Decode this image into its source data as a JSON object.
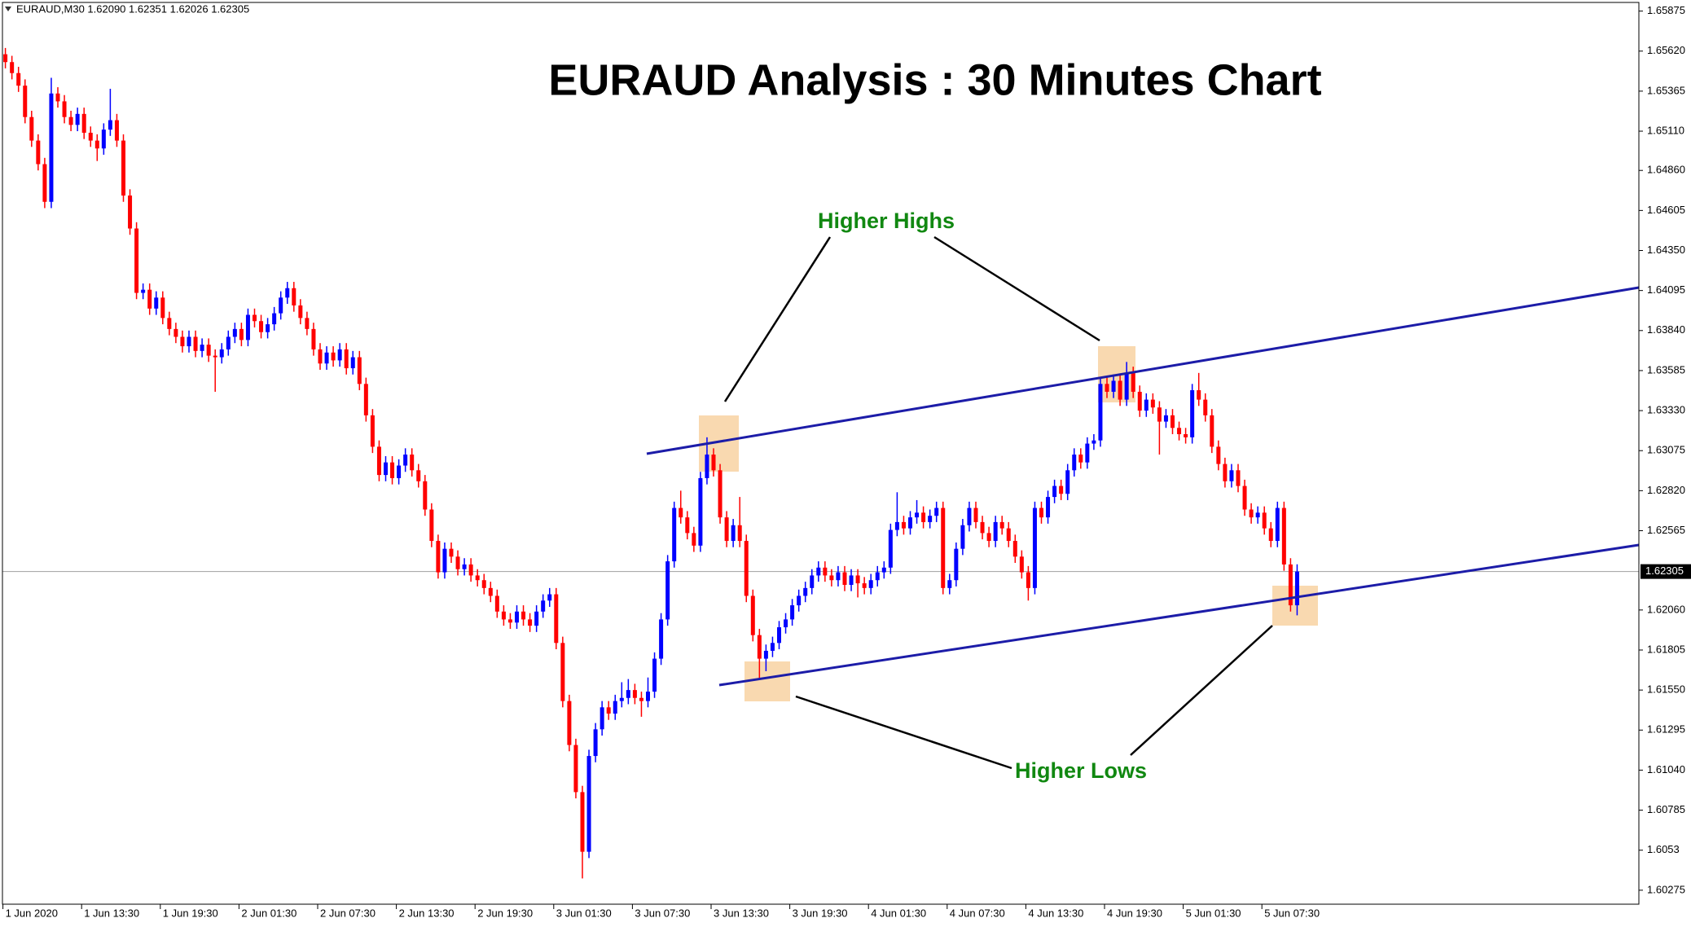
{
  "chart_data": {
    "type": "candlestick",
    "title": "EURAUD Analysis : 30 Minutes Chart",
    "info": "EURAUD,M30  1.62090 1.62351 1.62026 1.62305",
    "annotations": [
      "Higher Highs",
      "Higher Lows"
    ],
    "up_color": "#0000ff",
    "down_color": "#ff0000",
    "ylim": [
      1.60186,
      1.6593
    ],
    "yticks": [
      1.65875,
      {
        "value": 1.6562,
        "label": "1.65620"
      },
      1.65365,
      {
        "value": 1.6511,
        "label": "1.65110"
      },
      {
        "value": 1.6486,
        "label": "1.64860"
      },
      1.64605,
      {
        "value": 1.6435,
        "label": "1.64350"
      },
      1.64095,
      {
        "value": 1.6384,
        "label": "1.63840"
      },
      1.63585,
      {
        "value": 1.6333,
        "label": "1.63330"
      },
      1.63075,
      {
        "value": 1.6282,
        "label": "1.62820"
      },
      1.62565,
      {
        "value": 1.6206,
        "label": "1.62060"
      },
      1.61805,
      {
        "value": 1.6155,
        "label": "1.61550"
      },
      1.61295,
      {
        "value": 1.6104,
        "label": "1.61040"
      },
      1.60785,
      1.6053,
      1.60275
    ],
    "current_price": 1.62305,
    "categories": [
      "1 Jun 2020",
      null,
      null,
      null,
      null,
      null,
      null,
      null,
      null,
      null,
      null,
      null,
      "1 Jun 13:30",
      null,
      null,
      null,
      null,
      null,
      null,
      null,
      null,
      null,
      null,
      null,
      "1 Jun 19:30",
      null,
      null,
      null,
      null,
      null,
      null,
      null,
      null,
      null,
      null,
      null,
      "2 Jun 01:30",
      null,
      null,
      null,
      null,
      null,
      null,
      null,
      null,
      null,
      null,
      null,
      "2 Jun 07:30",
      null,
      null,
      null,
      null,
      null,
      null,
      null,
      null,
      null,
      null,
      null,
      "2 Jun 13:30",
      null,
      null,
      null,
      null,
      null,
      null,
      null,
      null,
      null,
      null,
      null,
      "2 Jun 19:30",
      null,
      null,
      null,
      null,
      null,
      null,
      null,
      null,
      null,
      null,
      null,
      "3 Jun 01:30",
      null,
      null,
      null,
      null,
      null,
      null,
      null,
      null,
      null,
      null,
      null,
      "3 Jun 07:30",
      null,
      null,
      null,
      null,
      null,
      null,
      null,
      null,
      null,
      null,
      null,
      "3 Jun 13:30",
      null,
      null,
      null,
      null,
      null,
      null,
      null,
      null,
      null,
      null,
      null,
      "3 Jun 19:30",
      null,
      null,
      null,
      null,
      null,
      null,
      null,
      null,
      null,
      null,
      null,
      "4 Jun 01:30",
      null,
      null,
      null,
      null,
      null,
      null,
      null,
      null,
      null,
      null,
      null,
      "4 Jun 07:30",
      null,
      null,
      null,
      null,
      null,
      null,
      null,
      null,
      null,
      null,
      null,
      "4 Jun 13:30",
      null,
      null,
      null,
      null,
      null,
      null,
      null,
      null,
      null,
      null,
      null,
      "4 Jun 19:30",
      null,
      null,
      null,
      null,
      null,
      null,
      null,
      null,
      null,
      null,
      null,
      "5 Jun 01:30",
      null,
      null,
      null,
      null,
      null,
      null,
      null,
      null,
      null,
      null,
      null,
      "5 Jun 07:30",
      null,
      null,
      null,
      null,
      null
    ],
    "ohlc": [
      [
        1.656,
        1.6564,
        1.6551,
        1.6555
      ],
      [
        1.6555,
        1.6559,
        1.6544,
        1.6548
      ],
      [
        1.6548,
        1.6552,
        1.6536,
        1.654
      ],
      [
        1.654,
        1.6544,
        1.6516,
        1.652
      ],
      [
        1.652,
        1.6524,
        1.6501,
        1.6505
      ],
      [
        1.6505,
        1.6509,
        1.6486,
        1.649
      ],
      [
        1.649,
        1.6494,
        1.6462,
        1.6466
      ],
      [
        1.6466,
        1.6545,
        1.6462,
        1.6535
      ],
      [
        1.6535,
        1.6539,
        1.6526,
        1.653
      ],
      [
        1.653,
        1.6534,
        1.6516,
        1.652
      ],
      [
        1.652,
        1.6524,
        1.6511,
        1.6515
      ],
      [
        1.6515,
        1.6526,
        1.6511,
        1.6522
      ],
      [
        1.6522,
        1.6526,
        1.6506,
        1.651
      ],
      [
        1.651,
        1.6514,
        1.6501,
        1.6505
      ],
      [
        1.6505,
        1.6509,
        1.6492,
        1.65
      ],
      [
        1.65,
        1.6516,
        1.6496,
        1.6512
      ],
      [
        1.6512,
        1.6538,
        1.6508,
        1.6518
      ],
      [
        1.6518,
        1.6522,
        1.6501,
        1.6505
      ],
      [
        1.6505,
        1.6509,
        1.6466,
        1.647
      ],
      [
        1.647,
        1.6474,
        1.6445,
        1.6449
      ],
      [
        1.6449,
        1.6453,
        1.6404,
        1.6408
      ],
      [
        1.6408,
        1.6414,
        1.6404,
        1.641
      ],
      [
        1.641,
        1.6414,
        1.6394,
        1.6398
      ],
      [
        1.6398,
        1.6409,
        1.6394,
        1.6405
      ],
      [
        1.6405,
        1.6409,
        1.6388,
        1.6392
      ],
      [
        1.6392,
        1.6396,
        1.6381,
        1.6385
      ],
      [
        1.6385,
        1.6389,
        1.6376,
        1.638
      ],
      [
        1.638,
        1.6384,
        1.637,
        1.6374
      ],
      [
        1.6374,
        1.6384,
        1.637,
        1.638
      ],
      [
        1.638,
        1.6384,
        1.6367,
        1.6371
      ],
      [
        1.6371,
        1.6379,
        1.6367,
        1.6375
      ],
      [
        1.6375,
        1.6379,
        1.6364,
        1.6368
      ],
      [
        1.6368,
        1.6372,
        1.6345,
        1.6367
      ],
      [
        1.6367,
        1.6376,
        1.6363,
        1.6372
      ],
      [
        1.6372,
        1.6384,
        1.6368,
        1.638
      ],
      [
        1.638,
        1.6389,
        1.6376,
        1.6385
      ],
      [
        1.6385,
        1.6389,
        1.6374,
        1.6378
      ],
      [
        1.6378,
        1.6398,
        1.6374,
        1.6394
      ],
      [
        1.6394,
        1.6398,
        1.6386,
        1.639
      ],
      [
        1.639,
        1.6394,
        1.6379,
        1.6383
      ],
      [
        1.6383,
        1.6392,
        1.6379,
        1.6388
      ],
      [
        1.6388,
        1.6399,
        1.6384,
        1.6395
      ],
      [
        1.6395,
        1.6409,
        1.6391,
        1.6405
      ],
      [
        1.6405,
        1.6415,
        1.6401,
        1.6411
      ],
      [
        1.6411,
        1.6415,
        1.6396,
        1.64
      ],
      [
        1.64,
        1.6404,
        1.6388,
        1.6392
      ],
      [
        1.6392,
        1.6396,
        1.6381,
        1.6385
      ],
      [
        1.6385,
        1.6389,
        1.6368,
        1.6372
      ],
      [
        1.6372,
        1.6376,
        1.6359,
        1.6363
      ],
      [
        1.6363,
        1.6374,
        1.6359,
        1.637
      ],
      [
        1.637,
        1.6374,
        1.6361,
        1.6365
      ],
      [
        1.6365,
        1.6376,
        1.6361,
        1.6372
      ],
      [
        1.6372,
        1.6376,
        1.6356,
        1.636
      ],
      [
        1.636,
        1.6371,
        1.6356,
        1.6367
      ],
      [
        1.6367,
        1.6371,
        1.6346,
        1.635
      ],
      [
        1.635,
        1.6354,
        1.6326,
        1.633
      ],
      [
        1.633,
        1.6334,
        1.6306,
        1.631
      ],
      [
        1.631,
        1.6314,
        1.6288,
        1.6292
      ],
      [
        1.6292,
        1.6304,
        1.6288,
        1.63
      ],
      [
        1.63,
        1.6304,
        1.6286,
        1.629
      ],
      [
        1.629,
        1.6302,
        1.6286,
        1.6298
      ],
      [
        1.6298,
        1.6309,
        1.6294,
        1.6305
      ],
      [
        1.6305,
        1.6309,
        1.6291,
        1.6295
      ],
      [
        1.6295,
        1.6299,
        1.6284,
        1.6288
      ],
      [
        1.6288,
        1.6292,
        1.6266,
        1.627
      ],
      [
        1.627,
        1.6274,
        1.6246,
        1.625
      ],
      [
        1.625,
        1.6254,
        1.6226,
        1.623
      ],
      [
        1.623,
        1.6249,
        1.6226,
        1.6245
      ],
      [
        1.6245,
        1.6249,
        1.6236,
        1.624
      ],
      [
        1.624,
        1.6244,
        1.6228,
        1.6232
      ],
      [
        1.6232,
        1.6239,
        1.6228,
        1.6235
      ],
      [
        1.6235,
        1.6239,
        1.6224,
        1.6228
      ],
      [
        1.6228,
        1.6232,
        1.6221,
        1.6225
      ],
      [
        1.6225,
        1.6229,
        1.6216,
        1.622
      ],
      [
        1.622,
        1.6224,
        1.6211,
        1.6215
      ],
      [
        1.6215,
        1.6219,
        1.6201,
        1.6205
      ],
      [
        1.6205,
        1.6209,
        1.6196,
        1.62
      ],
      [
        1.62,
        1.6204,
        1.6194,
        1.6198
      ],
      [
        1.6198,
        1.6209,
        1.6194,
        1.6205
      ],
      [
        1.6205,
        1.6209,
        1.6196,
        1.62
      ],
      [
        1.62,
        1.6204,
        1.6192,
        1.6196
      ],
      [
        1.6196,
        1.6209,
        1.6192,
        1.6205
      ],
      [
        1.6205,
        1.6216,
        1.6201,
        1.6212
      ],
      [
        1.6212,
        1.622,
        1.6208,
        1.6216
      ],
      [
        1.6216,
        1.622,
        1.6181,
        1.6185
      ],
      [
        1.6185,
        1.6189,
        1.6144,
        1.6148
      ],
      [
        1.6148,
        1.6152,
        1.6116,
        1.612
      ],
      [
        1.612,
        1.6124,
        1.6086,
        1.609
      ],
      [
        1.609,
        1.6094,
        1.6035,
        1.6052
      ],
      [
        1.6052,
        1.6117,
        1.6048,
        1.6113
      ],
      [
        1.6113,
        1.6134,
        1.6109,
        1.613
      ],
      [
        1.613,
        1.6148,
        1.6126,
        1.6144
      ],
      [
        1.6144,
        1.6148,
        1.6136,
        1.614
      ],
      [
        1.614,
        1.6152,
        1.6136,
        1.6148
      ],
      [
        1.6148,
        1.616,
        1.6144,
        1.615
      ],
      [
        1.615,
        1.6162,
        1.6146,
        1.6155
      ],
      [
        1.6155,
        1.6159,
        1.6146,
        1.615
      ],
      [
        1.615,
        1.6154,
        1.6138,
        1.6148
      ],
      [
        1.6148,
        1.6163,
        1.6144,
        1.6154
      ],
      [
        1.6154,
        1.6179,
        1.615,
        1.6175
      ],
      [
        1.6175,
        1.6204,
        1.6171,
        1.62
      ],
      [
        1.62,
        1.6241,
        1.6196,
        1.6237
      ],
      [
        1.6237,
        1.6275,
        1.6233,
        1.6271
      ],
      [
        1.6271,
        1.6282,
        1.6261,
        1.6265
      ],
      [
        1.6265,
        1.6269,
        1.6251,
        1.6255
      ],
      [
        1.6255,
        1.6259,
        1.6243,
        1.6247
      ],
      [
        1.6247,
        1.6294,
        1.6243,
        1.629
      ],
      [
        1.629,
        1.6316,
        1.6286,
        1.6305
      ],
      [
        1.6305,
        1.6309,
        1.6291,
        1.6295
      ],
      [
        1.6295,
        1.6299,
        1.6261,
        1.6265
      ],
      [
        1.6265,
        1.6269,
        1.6246,
        1.625
      ],
      [
        1.625,
        1.6264,
        1.6246,
        1.626
      ],
      [
        1.626,
        1.6278,
        1.6246,
        1.625
      ],
      [
        1.625,
        1.6254,
        1.6211,
        1.6215
      ],
      [
        1.6215,
        1.6219,
        1.6186,
        1.619
      ],
      [
        1.619,
        1.6194,
        1.6162,
        1.6175
      ],
      [
        1.6175,
        1.6184,
        1.6167,
        1.618
      ],
      [
        1.618,
        1.6189,
        1.6176,
        1.6185
      ],
      [
        1.6185,
        1.6199,
        1.6181,
        1.6195
      ],
      [
        1.6195,
        1.6204,
        1.6191,
        1.62
      ],
      [
        1.62,
        1.6213,
        1.6196,
        1.6209
      ],
      [
        1.6209,
        1.6219,
        1.6205,
        1.6215
      ],
      [
        1.6215,
        1.6224,
        1.6211,
        1.622
      ],
      [
        1.622,
        1.6232,
        1.6216,
        1.6228
      ],
      [
        1.6228,
        1.6237,
        1.6224,
        1.6233
      ],
      [
        1.6233,
        1.6237,
        1.6224,
        1.6228
      ],
      [
        1.6228,
        1.6232,
        1.6221,
        1.6225
      ],
      [
        1.6225,
        1.6234,
        1.6221,
        1.623
      ],
      [
        1.623,
        1.6234,
        1.6218,
        1.6222
      ],
      [
        1.6222,
        1.6232,
        1.6218,
        1.6228
      ],
      [
        1.6228,
        1.6232,
        1.6214,
        1.6223
      ],
      [
        1.6223,
        1.6227,
        1.6216,
        1.622
      ],
      [
        1.622,
        1.6229,
        1.6216,
        1.6225
      ],
      [
        1.6225,
        1.6234,
        1.6221,
        1.623
      ],
      [
        1.623,
        1.6237,
        1.6226,
        1.6233
      ],
      [
        1.6233,
        1.6261,
        1.6229,
        1.6257
      ],
      [
        1.6257,
        1.6281,
        1.6253,
        1.6262
      ],
      [
        1.6262,
        1.6266,
        1.6254,
        1.6258
      ],
      [
        1.6258,
        1.6269,
        1.6254,
        1.6265
      ],
      [
        1.6265,
        1.6276,
        1.6261,
        1.6268
      ],
      [
        1.6268,
        1.6272,
        1.6258,
        1.6262
      ],
      [
        1.6262,
        1.627,
        1.6258,
        1.6266
      ],
      [
        1.6266,
        1.6275,
        1.6262,
        1.6271
      ],
      [
        1.6271,
        1.6275,
        1.6216,
        1.622
      ],
      [
        1.622,
        1.6229,
        1.6216,
        1.6225
      ],
      [
        1.6225,
        1.6249,
        1.6221,
        1.6245
      ],
      [
        1.6245,
        1.6264,
        1.6241,
        1.626
      ],
      [
        1.626,
        1.6275,
        1.6256,
        1.6271
      ],
      [
        1.6271,
        1.6275,
        1.6258,
        1.6262
      ],
      [
        1.6262,
        1.6266,
        1.6251,
        1.6255
      ],
      [
        1.6255,
        1.6259,
        1.6246,
        1.625
      ],
      [
        1.625,
        1.6266,
        1.6246,
        1.6262
      ],
      [
        1.6262,
        1.6266,
        1.6254,
        1.6258
      ],
      [
        1.6258,
        1.6262,
        1.6246,
        1.625
      ],
      [
        1.625,
        1.6254,
        1.6236,
        1.624
      ],
      [
        1.624,
        1.6244,
        1.6226,
        1.623
      ],
      [
        1.623,
        1.6234,
        1.6212,
        1.622
      ],
      [
        1.622,
        1.6275,
        1.6216,
        1.6271
      ],
      [
        1.6271,
        1.6275,
        1.6261,
        1.6265
      ],
      [
        1.6265,
        1.6282,
        1.6261,
        1.6278
      ],
      [
        1.6278,
        1.6289,
        1.6274,
        1.6285
      ],
      [
        1.6285,
        1.6289,
        1.6276,
        1.628
      ],
      [
        1.628,
        1.6299,
        1.6276,
        1.6295
      ],
      [
        1.6295,
        1.6309,
        1.6291,
        1.6305
      ],
      [
        1.6305,
        1.6309,
        1.6296,
        1.63
      ],
      [
        1.63,
        1.6316,
        1.6296,
        1.6312
      ],
      [
        1.6312,
        1.6318,
        1.6308,
        1.6314
      ],
      [
        1.6314,
        1.6354,
        1.631,
        1.635
      ],
      [
        1.635,
        1.6354,
        1.6341,
        1.6345
      ],
      [
        1.6345,
        1.6356,
        1.6341,
        1.6352
      ],
      [
        1.6352,
        1.6356,
        1.6336,
        1.634
      ],
      [
        1.634,
        1.6364,
        1.6336,
        1.6357
      ],
      [
        1.6357,
        1.6361,
        1.6341,
        1.6345
      ],
      [
        1.6345,
        1.6349,
        1.6329,
        1.6333
      ],
      [
        1.6333,
        1.6344,
        1.6329,
        1.634
      ],
      [
        1.634,
        1.6344,
        1.6331,
        1.6335
      ],
      [
        1.6335,
        1.6339,
        1.6305,
        1.6326
      ],
      [
        1.6326,
        1.6334,
        1.6322,
        1.633
      ],
      [
        1.633,
        1.6334,
        1.6318,
        1.6322
      ],
      [
        1.6322,
        1.6326,
        1.6314,
        1.6318
      ],
      [
        1.6318,
        1.6322,
        1.6312,
        1.6316
      ],
      [
        1.6316,
        1.635,
        1.6312,
        1.6346
      ],
      [
        1.6346,
        1.6357,
        1.6336,
        1.634
      ],
      [
        1.634,
        1.6344,
        1.6326,
        1.633
      ],
      [
        1.633,
        1.6334,
        1.6306,
        1.631
      ],
      [
        1.631,
        1.6314,
        1.6295,
        1.6299
      ],
      [
        1.6299,
        1.6303,
        1.6284,
        1.6288
      ],
      [
        1.6288,
        1.6299,
        1.6284,
        1.6295
      ],
      [
        1.6295,
        1.6299,
        1.6281,
        1.6285
      ],
      [
        1.6285,
        1.6289,
        1.6266,
        1.627
      ],
      [
        1.627,
        1.6274,
        1.6261,
        1.6265
      ],
      [
        1.6265,
        1.6272,
        1.6261,
        1.6268
      ],
      [
        1.6268,
        1.6272,
        1.6254,
        1.6258
      ],
      [
        1.6258,
        1.6262,
        1.6246,
        1.625
      ],
      [
        1.625,
        1.6275,
        1.6246,
        1.6271
      ],
      [
        1.6271,
        1.6275,
        1.6231,
        1.6235
      ],
      [
        1.6235,
        1.6239,
        1.6205,
        1.6209
      ],
      [
        1.6209,
        1.62351,
        1.62026,
        1.62305
      ]
    ]
  }
}
